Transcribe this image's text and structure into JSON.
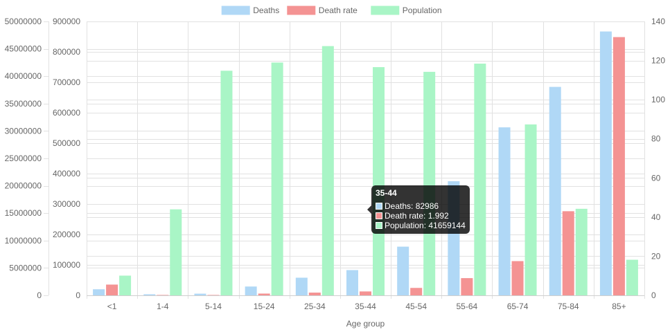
{
  "chart_data": {
    "type": "bar",
    "xlabel": "Age group",
    "categories": [
      "<1",
      "1-4",
      "5-14",
      "15-24",
      "25-34",
      "35-44",
      "45-54",
      "55-64",
      "65-74",
      "75-84",
      "85+"
    ],
    "series": [
      {
        "name": "Deaths",
        "axis": "y-deaths",
        "color": "#b0d8f6",
        "values": [
          20000,
          3500,
          5500,
          29000,
          58000,
          82986,
          160000,
          375000,
          552000,
          685000,
          867000
        ]
      },
      {
        "name": "Death rate",
        "axis": "y-rate",
        "color": "#f49393",
        "values": [
          5.5,
          0.2,
          0.2,
          0.9,
          1.4,
          1.992,
          3.8,
          8.8,
          17.5,
          43.0,
          132.0
        ]
      },
      {
        "name": "Population",
        "axis": "y-population",
        "color": "#a9f5c6",
        "values": [
          3600000,
          15700000,
          41000000,
          42500000,
          45500000,
          41659144,
          40800000,
          42300000,
          31200000,
          15800000,
          6500000
        ]
      }
    ],
    "axes": {
      "y-population": {
        "position": "left-outer",
        "min": 0,
        "max": 50000000,
        "ticks": [
          "0",
          "5000000",
          "10000000",
          "15000000",
          "20000000",
          "25000000",
          "30000000",
          "35000000",
          "40000000",
          "45000000",
          "50000000"
        ]
      },
      "y-deaths": {
        "position": "left-inner",
        "min": 0,
        "max": 900000,
        "ticks": [
          "0",
          "100000",
          "200000",
          "300000",
          "400000",
          "500000",
          "600000",
          "700000",
          "800000",
          "900000"
        ]
      },
      "y-rate": {
        "position": "right",
        "min": 0,
        "max": 140,
        "ticks": [
          "0",
          "20",
          "40",
          "60",
          "80",
          "100",
          "120",
          "140"
        ]
      }
    },
    "grid": true,
    "legend": "top-center"
  },
  "tooltip": {
    "title": "35-44",
    "lines": [
      "Deaths: 82986",
      "Death rate: 1.992",
      "Population: 41659144"
    ],
    "colors": [
      "#b0d8f6",
      "#f49393",
      "#a9f5c6"
    ]
  }
}
